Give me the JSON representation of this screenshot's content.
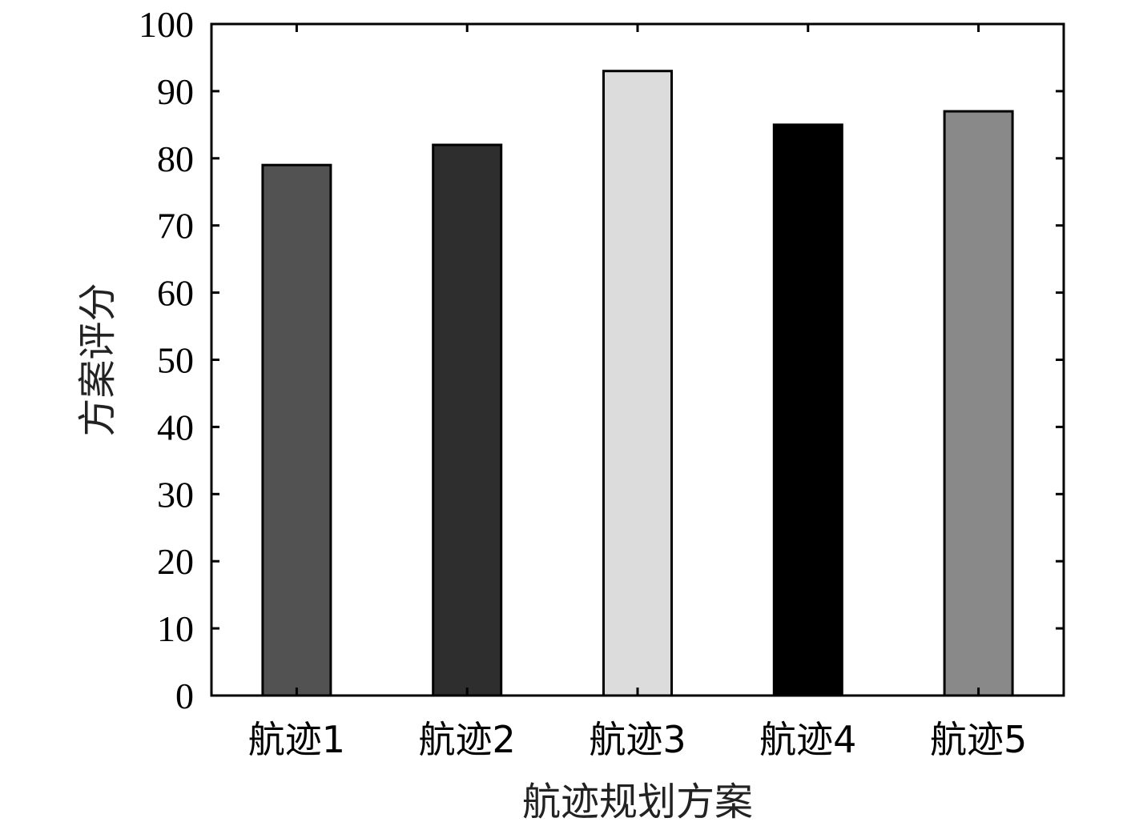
{
  "chart_data": {
    "type": "bar",
    "categories": [
      "航迹1",
      "航迹2",
      "航迹3",
      "航迹4",
      "航迹5"
    ],
    "values": [
      79,
      82,
      93,
      85,
      87
    ],
    "colors": [
      "#525252",
      "#2e2e2e",
      "#dcdcdc",
      "#000000",
      "#898989"
    ],
    "title": "",
    "xlabel": "航迹规划方案",
    "ylabel": "方案评分",
    "ylim": [
      0,
      100
    ],
    "yticks": [
      0,
      10,
      20,
      30,
      40,
      50,
      60,
      70,
      80,
      90,
      100
    ],
    "grid": false
  }
}
